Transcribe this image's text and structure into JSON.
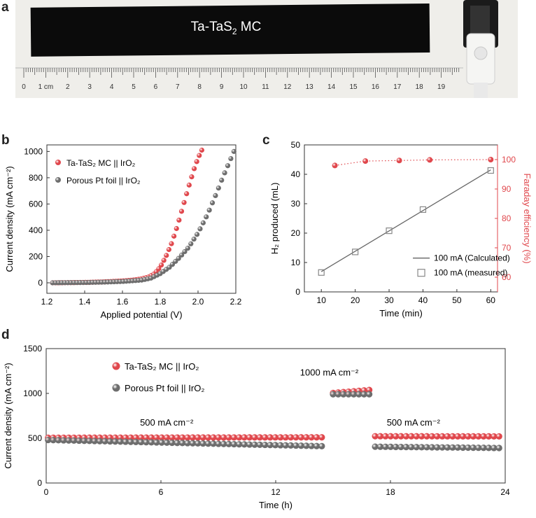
{
  "panels": {
    "a": "a",
    "b": "b",
    "c": "c",
    "d": "d"
  },
  "panel_a": {
    "strip_label": "Ta-TaS",
    "strip_label_sub": "2",
    "strip_label_tail": " MC",
    "ruler_labels": [
      "0",
      "1 cm",
      "2",
      "3",
      "4",
      "5",
      "6",
      "7",
      "8",
      "9",
      "10",
      "11",
      "12",
      "13",
      "14",
      "15",
      "16",
      "17",
      "18",
      "19"
    ]
  },
  "chart_data": [
    {
      "id": "b",
      "type": "scatter",
      "xlabel": "Applied potential (V)",
      "ylabel": "Current density (mA cm⁻²)",
      "xlim": [
        1.2,
        2.2
      ],
      "ylim": [
        -80,
        1050
      ],
      "xticks": [
        1.2,
        1.4,
        1.6,
        1.8,
        2.0,
        2.2
      ],
      "yticks": [
        0,
        200,
        400,
        600,
        800,
        1000
      ],
      "legend_position": "top-left",
      "series": [
        {
          "name": "Ta-TaS₂ MC || IrO₂",
          "color": "#e0474c",
          "x": [
            1.23,
            1.3,
            1.4,
            1.5,
            1.6,
            1.65,
            1.7,
            1.74,
            1.77,
            1.8,
            1.83,
            1.86,
            1.89,
            1.92,
            1.95,
            1.98,
            2.0,
            2.02
          ],
          "y": [
            0,
            1,
            3,
            7,
            14,
            20,
            30,
            45,
            70,
            120,
            200,
            300,
            430,
            580,
            730,
            870,
            950,
            1010
          ]
        },
        {
          "name": "Porous Pt foil || IrO₂",
          "color": "#6d6d6d",
          "x": [
            1.23,
            1.3,
            1.4,
            1.5,
            1.6,
            1.7,
            1.75,
            1.8,
            1.85,
            1.9,
            1.95,
            2.0,
            2.05,
            2.1,
            2.13,
            2.16,
            2.19
          ],
          "y": [
            0,
            1,
            2,
            5,
            10,
            20,
            35,
            70,
            120,
            190,
            270,
            380,
            520,
            690,
            800,
            900,
            1000
          ]
        }
      ]
    },
    {
      "id": "c",
      "type": "line",
      "xlabel": "Time (min)",
      "ylabel": "H₂ produced (mL)",
      "ylabel_right": "Faraday efficiency (%)",
      "xlim": [
        5,
        62
      ],
      "ylim": [
        0,
        50
      ],
      "ylim_right": [
        55,
        105
      ],
      "xticks": [
        10,
        20,
        30,
        40,
        50,
        60
      ],
      "yticks": [
        0,
        10,
        20,
        30,
        40,
        50
      ],
      "yticks_right": [
        60,
        70,
        80,
        90,
        100
      ],
      "legend_position": "bottom-right",
      "series": [
        {
          "name": "100 mA (Calculated)",
          "style": "line",
          "color": "#666666",
          "x": [
            10,
            60
          ],
          "y": [
            6.9,
            41.5
          ]
        },
        {
          "name": "100 mA (measured)",
          "style": "open-square",
          "color": "#888888",
          "x": [
            10,
            20,
            30,
            40,
            60
          ],
          "y": [
            6.6,
            13.6,
            20.8,
            28.0,
            41.3
          ]
        },
        {
          "name": "",
          "style": "dotted-dots",
          "axis": "right",
          "color": "#e0474c",
          "x": [
            14,
            23,
            33,
            42,
            60
          ],
          "y": [
            98,
            99.5,
            99.7,
            99.9,
            100
          ]
        }
      ]
    },
    {
      "id": "d",
      "type": "scatter",
      "xlabel": "Time (h)",
      "ylabel": "Current density (mA cm⁻²)",
      "xlim": [
        0,
        24
      ],
      "ylim": [
        0,
        1500
      ],
      "xticks": [
        0,
        6,
        12,
        18,
        24
      ],
      "yticks": [
        0,
        500,
        1000,
        1500
      ],
      "legend_position": "top-left",
      "annotations": [
        {
          "text": "500 mA cm⁻²",
          "x": 6.3,
          "y": 640
        },
        {
          "text": "1000 mA cm⁻²",
          "x": 14.8,
          "y": 1200
        },
        {
          "text": "500 mA cm⁻²",
          "x": 19.2,
          "y": 640
        }
      ],
      "series": [
        {
          "name": "Ta-TaS₂ MC || IrO₂",
          "color": "#e0474c",
          "segments": [
            {
              "x0": 0.1,
              "x1": 14.6,
              "y0": 505,
              "y1": 510
            },
            {
              "x0": 15.0,
              "x1": 17.0,
              "y0": 1005,
              "y1": 1040
            },
            {
              "x0": 17.2,
              "x1": 23.9,
              "y0": 522,
              "y1": 520
            }
          ]
        },
        {
          "name": "Porous Pt foil || IrO₂",
          "color": "#6d6d6d",
          "segments": [
            {
              "x0": 0.1,
              "x1": 14.6,
              "y0": 480,
              "y1": 410
            },
            {
              "x0": 15.0,
              "x1": 17.0,
              "y0": 990,
              "y1": 990
            },
            {
              "x0": 17.2,
              "x1": 23.9,
              "y0": 405,
              "y1": 390
            }
          ]
        }
      ]
    }
  ]
}
